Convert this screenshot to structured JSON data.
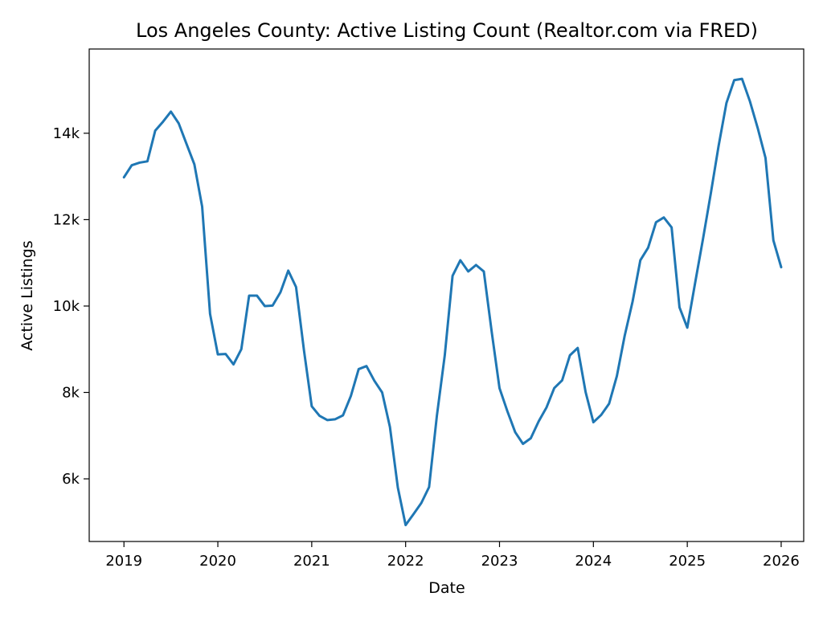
{
  "chart_data": {
    "type": "line",
    "title": "Los Angeles County: Active Listing Count (Realtor.com via FRED)",
    "xlabel": "Date",
    "ylabel": "Active Listings",
    "xlim": [
      2018.63,
      2026.24
    ],
    "ylim": [
      4550,
      15950
    ],
    "x_ticks": [
      2019,
      2020,
      2021,
      2022,
      2023,
      2024,
      2025,
      2026
    ],
    "x_tick_labels": [
      "2019",
      "2020",
      "2021",
      "2022",
      "2023",
      "2024",
      "2025",
      "2026"
    ],
    "y_ticks": [
      6000,
      8000,
      10000,
      12000,
      14000
    ],
    "y_tick_labels": [
      "6k",
      "8k",
      "10k",
      "12k",
      "14k"
    ],
    "grid": false,
    "series": [
      {
        "color": "#1f77b4",
        "x": [
          2019.0,
          2019.083,
          2019.167,
          2019.25,
          2019.333,
          2019.417,
          2019.5,
          2019.583,
          2019.667,
          2019.75,
          2019.833,
          2019.917,
          2020.0,
          2020.083,
          2020.167,
          2020.25,
          2020.333,
          2020.417,
          2020.5,
          2020.583,
          2020.667,
          2020.75,
          2020.833,
          2020.917,
          2021.0,
          2021.083,
          2021.167,
          2021.25,
          2021.333,
          2021.417,
          2021.5,
          2021.583,
          2021.667,
          2021.75,
          2021.833,
          2021.917,
          2022.0,
          2022.083,
          2022.167,
          2022.25,
          2022.333,
          2022.417,
          2022.5,
          2022.583,
          2022.667,
          2022.75,
          2022.833,
          2022.917,
          2023.0,
          2023.083,
          2023.167,
          2023.25,
          2023.333,
          2023.417,
          2023.5,
          2023.583,
          2023.667,
          2023.75,
          2023.833,
          2023.917,
          2024.0,
          2024.083,
          2024.167,
          2024.25,
          2024.333,
          2024.417,
          2024.5,
          2024.583,
          2024.667,
          2024.75,
          2024.833,
          2024.917,
          2025.0,
          2025.083,
          2025.167,
          2025.25,
          2025.333,
          2025.417,
          2025.5,
          2025.583,
          2025.667,
          2025.75,
          2025.833,
          2025.917,
          2026.0
        ],
        "y": [
          12980,
          13260,
          13320,
          13350,
          14060,
          14270,
          14500,
          14230,
          13750,
          13280,
          12300,
          9820,
          8880,
          8890,
          8650,
          9000,
          10240,
          10240,
          10000,
          10010,
          10320,
          10820,
          10440,
          8980,
          7680,
          7460,
          7360,
          7380,
          7470,
          7920,
          8540,
          8610,
          8270,
          8000,
          7200,
          5800,
          4930,
          5180,
          5440,
          5810,
          7460,
          8860,
          10700,
          11060,
          10800,
          10950,
          10800,
          9400,
          8100,
          7570,
          7080,
          6810,
          6940,
          7330,
          7650,
          8100,
          8280,
          8860,
          9030,
          8010,
          7310,
          7480,
          7740,
          8380,
          9310,
          10100,
          11060,
          11350,
          11940,
          12050,
          11820,
          9970,
          9500,
          10530,
          11550,
          12600,
          13700,
          14700,
          15230,
          15260,
          14740,
          14120,
          13430,
          11520,
          10900
        ]
      }
    ]
  }
}
